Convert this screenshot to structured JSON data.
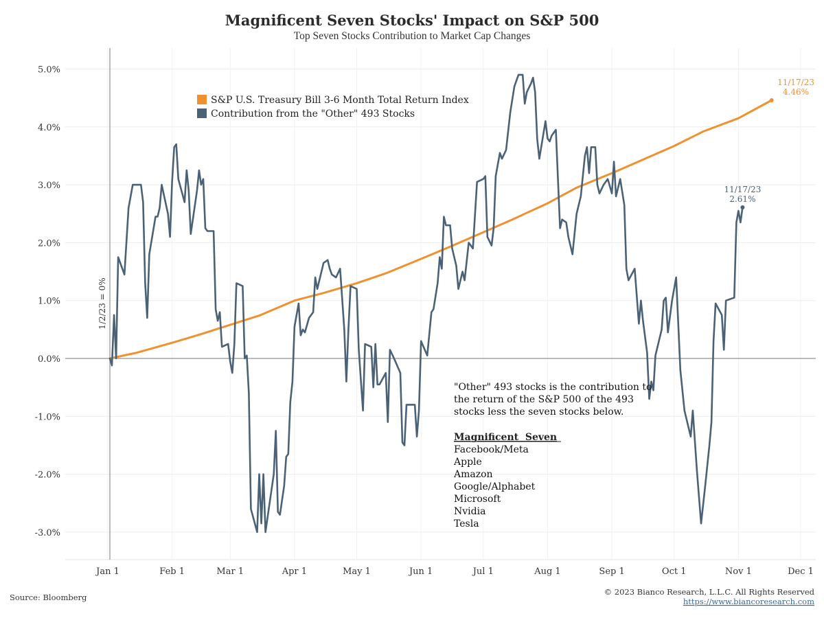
{
  "chart_data": {
    "type": "line",
    "title": "Magnificent Seven Stocks' Impact on S&P 500",
    "subtitle": "Top Seven Stocks Contribution to Market Cap Changes",
    "xlabel": "",
    "ylabel": "",
    "x_range": [
      "2023-01-01",
      "2023-12-01"
    ],
    "x_ticks": [
      {
        "date": "2023-01-01",
        "label": "Jan 1"
      },
      {
        "date": "2023-02-01",
        "label": "Feb 1"
      },
      {
        "date": "2023-03-01",
        "label": "Mar 1"
      },
      {
        "date": "2023-04-01",
        "label": "Apr 1"
      },
      {
        "date": "2023-05-01",
        "label": "May 1"
      },
      {
        "date": "2023-06-01",
        "label": "Jun 1"
      },
      {
        "date": "2023-07-01",
        "label": "Jul 1"
      },
      {
        "date": "2023-08-01",
        "label": "Aug 1"
      },
      {
        "date": "2023-09-01",
        "label": "Sep 1"
      },
      {
        "date": "2023-10-01",
        "label": "Oct 1"
      },
      {
        "date": "2023-11-01",
        "label": "Nov 1"
      },
      {
        "date": "2023-12-01",
        "label": "Dec 1"
      }
    ],
    "ylim": [
      -3.5,
      5.2
    ],
    "y_ticks": [
      {
        "value": 5,
        "label": "5.0%"
      },
      {
        "value": 4,
        "label": "4.0%"
      },
      {
        "value": 3,
        "label": "3.0%"
      },
      {
        "value": 2,
        "label": "2.0%"
      },
      {
        "value": 1,
        "label": "1.0%"
      },
      {
        "value": 0,
        "label": "0.0%"
      },
      {
        "value": -1,
        "label": "-1.0%"
      },
      {
        "value": -2,
        "label": "-2.0%"
      },
      {
        "value": -3,
        "label": "-3.0%"
      }
    ],
    "grid": true,
    "legend_position": "top-left",
    "start_marker": {
      "date": "2023-01-02",
      "label": "1/2/23 = 0%"
    },
    "series": [
      {
        "name": "S&P U.S. Treasury Bill 3-6 Month Total Return Index",
        "color": "#f0902e",
        "end_label_date": "11/17/23",
        "end_label_value": "4.46%",
        "points": [
          [
            "2023-01-02",
            0.0
          ],
          [
            "2023-01-15",
            0.1
          ],
          [
            "2023-02-01",
            0.27
          ],
          [
            "2023-02-15",
            0.42
          ],
          [
            "2023-03-01",
            0.58
          ],
          [
            "2023-03-15",
            0.74
          ],
          [
            "2023-04-01",
            1.0
          ],
          [
            "2023-04-15",
            1.13
          ],
          [
            "2023-05-01",
            1.3
          ],
          [
            "2023-05-15",
            1.47
          ],
          [
            "2023-06-01",
            1.72
          ],
          [
            "2023-06-15",
            1.93
          ],
          [
            "2023-07-01",
            2.18
          ],
          [
            "2023-07-15",
            2.4
          ],
          [
            "2023-08-01",
            2.68
          ],
          [
            "2023-08-15",
            2.95
          ],
          [
            "2023-09-01",
            3.2
          ],
          [
            "2023-09-15",
            3.42
          ],
          [
            "2023-10-01",
            3.67
          ],
          [
            "2023-10-15",
            3.92
          ],
          [
            "2023-11-01",
            4.15
          ],
          [
            "2023-11-17",
            4.46
          ]
        ]
      },
      {
        "name": "Contribution from the \"Other\" 493 Stocks",
        "color": "#4a6176",
        "end_label_date": "11/17/23",
        "end_label_value": "2.61%",
        "points": [
          [
            "2023-01-02",
            0.0
          ],
          [
            "2023-01-03",
            -0.12
          ],
          [
            "2023-01-04",
            0.75
          ],
          [
            "2023-01-05",
            0.0
          ],
          [
            "2023-01-06",
            1.75
          ],
          [
            "2023-01-09",
            1.45
          ],
          [
            "2023-01-11",
            2.6
          ],
          [
            "2023-01-13",
            3.0
          ],
          [
            "2023-01-17",
            3.0
          ],
          [
            "2023-01-18",
            2.7
          ],
          [
            "2023-01-19",
            1.3
          ],
          [
            "2023-01-20",
            0.7
          ],
          [
            "2023-01-21",
            1.8
          ],
          [
            "2023-01-24",
            2.45
          ],
          [
            "2023-01-25",
            2.45
          ],
          [
            "2023-01-26",
            2.6
          ],
          [
            "2023-01-27",
            3.0
          ],
          [
            "2023-01-30",
            2.5
          ],
          [
            "2023-01-31",
            2.1
          ],
          [
            "2023-02-01",
            3.05
          ],
          [
            "2023-02-02",
            3.65
          ],
          [
            "2023-02-03",
            3.7
          ],
          [
            "2023-02-04",
            3.1
          ],
          [
            "2023-02-07",
            2.7
          ],
          [
            "2023-02-08",
            3.25
          ],
          [
            "2023-02-09",
            2.9
          ],
          [
            "2023-02-10",
            2.15
          ],
          [
            "2023-02-13",
            2.9
          ],
          [
            "2023-02-14",
            3.25
          ],
          [
            "2023-02-15",
            3.0
          ],
          [
            "2023-02-16",
            3.1
          ],
          [
            "2023-02-17",
            2.25
          ],
          [
            "2023-02-18",
            2.2
          ],
          [
            "2023-02-21",
            2.2
          ],
          [
            "2023-02-22",
            0.85
          ],
          [
            "2023-02-23",
            0.65
          ],
          [
            "2023-02-24",
            0.8
          ],
          [
            "2023-02-25",
            0.2
          ],
          [
            "2023-02-28",
            0.25
          ],
          [
            "2023-03-01",
            -0.05
          ],
          [
            "2023-03-02",
            -0.25
          ],
          [
            "2023-03-03",
            0.25
          ],
          [
            "2023-03-04",
            1.3
          ],
          [
            "2023-03-07",
            1.25
          ],
          [
            "2023-03-08",
            0.0
          ],
          [
            "2023-03-09",
            0.05
          ],
          [
            "2023-03-10",
            -0.6
          ],
          [
            "2023-03-11",
            -2.6
          ],
          [
            "2023-03-14",
            -3.0
          ],
          [
            "2023-03-15",
            -2.0
          ],
          [
            "2023-03-16",
            -2.85
          ],
          [
            "2023-03-17",
            -2.0
          ],
          [
            "2023-03-18",
            -3.0
          ],
          [
            "2023-03-20",
            -2.5
          ],
          [
            "2023-03-22",
            -2.0
          ],
          [
            "2023-03-23",
            -1.25
          ],
          [
            "2023-03-24",
            -2.65
          ],
          [
            "2023-03-25",
            -2.7
          ],
          [
            "2023-03-27",
            -2.2
          ],
          [
            "2023-03-28",
            -1.7
          ],
          [
            "2023-03-29",
            -1.65
          ],
          [
            "2023-03-30",
            -0.75
          ],
          [
            "2023-03-31",
            -0.4
          ],
          [
            "2023-04-01",
            0.55
          ],
          [
            "2023-04-03",
            0.95
          ],
          [
            "2023-04-04",
            0.4
          ],
          [
            "2023-04-05",
            0.5
          ],
          [
            "2023-04-06",
            0.45
          ],
          [
            "2023-04-08",
            0.7
          ],
          [
            "2023-04-10",
            0.8
          ],
          [
            "2023-04-11",
            1.4
          ],
          [
            "2023-04-12",
            1.2
          ],
          [
            "2023-04-13",
            1.35
          ],
          [
            "2023-04-15",
            1.65
          ],
          [
            "2023-04-17",
            1.7
          ],
          [
            "2023-04-18",
            1.55
          ],
          [
            "2023-04-19",
            1.45
          ],
          [
            "2023-04-21",
            1.4
          ],
          [
            "2023-04-23",
            1.55
          ],
          [
            "2023-04-25",
            0.5
          ],
          [
            "2023-04-26",
            -0.4
          ],
          [
            "2023-04-27",
            0.5
          ],
          [
            "2023-04-28",
            1.25
          ],
          [
            "2023-05-01",
            1.2
          ],
          [
            "2023-05-02",
            0.15
          ],
          [
            "2023-05-04",
            -0.9
          ],
          [
            "2023-05-05",
            0.25
          ],
          [
            "2023-05-08",
            0.2
          ],
          [
            "2023-05-09",
            -0.5
          ],
          [
            "2023-05-10",
            0.25
          ],
          [
            "2023-05-11",
            -0.45
          ],
          [
            "2023-05-12",
            -0.45
          ],
          [
            "2023-05-15",
            -0.25
          ],
          [
            "2023-05-16",
            -1.1
          ],
          [
            "2023-05-17",
            0.15
          ],
          [
            "2023-05-19",
            0.0
          ],
          [
            "2023-05-22",
            -0.25
          ],
          [
            "2023-05-23",
            -1.45
          ],
          [
            "2023-05-24",
            -1.5
          ],
          [
            "2023-05-25",
            -0.8
          ],
          [
            "2023-05-29",
            -0.8
          ],
          [
            "2023-05-30",
            -1.35
          ],
          [
            "2023-05-31",
            -0.9
          ],
          [
            "2023-06-01",
            0.3
          ],
          [
            "2023-06-04",
            0.05
          ],
          [
            "2023-06-06",
            0.8
          ],
          [
            "2023-06-07",
            0.85
          ],
          [
            "2023-06-09",
            1.3
          ],
          [
            "2023-06-10",
            1.75
          ],
          [
            "2023-06-11",
            1.55
          ],
          [
            "2023-06-12",
            2.45
          ],
          [
            "2023-06-13",
            2.3
          ],
          [
            "2023-06-15",
            2.3
          ],
          [
            "2023-06-16",
            1.9
          ],
          [
            "2023-06-18",
            1.6
          ],
          [
            "2023-06-19",
            1.2
          ],
          [
            "2023-06-21",
            1.5
          ],
          [
            "2023-06-22",
            1.35
          ],
          [
            "2023-06-24",
            2.0
          ],
          [
            "2023-06-26",
            1.9
          ],
          [
            "2023-06-28",
            3.05
          ],
          [
            "2023-07-01",
            3.1
          ],
          [
            "2023-07-02",
            3.15
          ],
          [
            "2023-07-03",
            2.1
          ],
          [
            "2023-07-05",
            1.95
          ],
          [
            "2023-07-06",
            2.25
          ],
          [
            "2023-07-07",
            3.15
          ],
          [
            "2023-07-09",
            3.55
          ],
          [
            "2023-07-10",
            3.45
          ],
          [
            "2023-07-12",
            3.6
          ],
          [
            "2023-07-14",
            4.25
          ],
          [
            "2023-07-16",
            4.7
          ],
          [
            "2023-07-18",
            4.9
          ],
          [
            "2023-07-20",
            4.9
          ],
          [
            "2023-07-21",
            4.4
          ],
          [
            "2023-07-22",
            4.6
          ],
          [
            "2023-07-24",
            4.75
          ],
          [
            "2023-07-25",
            4.85
          ],
          [
            "2023-07-26",
            4.6
          ],
          [
            "2023-07-27",
            3.8
          ],
          [
            "2023-07-28",
            3.45
          ],
          [
            "2023-07-31",
            4.1
          ],
          [
            "2023-08-01",
            3.8
          ],
          [
            "2023-08-02",
            3.75
          ],
          [
            "2023-08-03",
            3.85
          ],
          [
            "2023-08-05",
            3.95
          ],
          [
            "2023-08-07",
            2.25
          ],
          [
            "2023-08-08",
            2.4
          ],
          [
            "2023-08-10",
            2.35
          ],
          [
            "2023-08-11",
            2.1
          ],
          [
            "2023-08-13",
            1.8
          ],
          [
            "2023-08-15",
            2.5
          ],
          [
            "2023-08-17",
            2.8
          ],
          [
            "2023-08-19",
            3.5
          ],
          [
            "2023-08-20",
            3.65
          ],
          [
            "2023-08-21",
            3.2
          ],
          [
            "2023-08-22",
            3.65
          ],
          [
            "2023-08-24",
            3.65
          ],
          [
            "2023-08-25",
            3.0
          ],
          [
            "2023-08-26",
            2.85
          ],
          [
            "2023-08-28",
            3.0
          ],
          [
            "2023-08-30",
            3.1
          ],
          [
            "2023-09-01",
            2.85
          ],
          [
            "2023-09-02",
            3.4
          ],
          [
            "2023-09-03",
            2.8
          ],
          [
            "2023-09-05",
            3.1
          ],
          [
            "2023-09-07",
            2.65
          ],
          [
            "2023-09-08",
            1.55
          ],
          [
            "2023-09-09",
            1.35
          ],
          [
            "2023-09-12",
            1.55
          ],
          [
            "2023-09-14",
            0.6
          ],
          [
            "2023-09-15",
            1.0
          ],
          [
            "2023-09-16",
            0.65
          ],
          [
            "2023-09-18",
            0.1
          ],
          [
            "2023-09-19",
            -0.7
          ],
          [
            "2023-09-20",
            -0.4
          ],
          [
            "2023-09-21",
            -0.55
          ],
          [
            "2023-09-22",
            0.05
          ],
          [
            "2023-09-25",
            0.5
          ],
          [
            "2023-09-26",
            1.0
          ],
          [
            "2023-09-27",
            1.05
          ],
          [
            "2023-09-28",
            0.45
          ],
          [
            "2023-09-30",
            1.0
          ],
          [
            "2023-10-02",
            1.4
          ],
          [
            "2023-10-04",
            -0.2
          ],
          [
            "2023-10-06",
            -0.9
          ],
          [
            "2023-10-09",
            -1.35
          ],
          [
            "2023-10-10",
            -0.9
          ],
          [
            "2023-10-12",
            -1.95
          ],
          [
            "2023-10-14",
            -2.85
          ],
          [
            "2023-10-16",
            -2.2
          ],
          [
            "2023-10-18",
            -1.5
          ],
          [
            "2023-10-19",
            -1.1
          ],
          [
            "2023-10-20",
            0.3
          ],
          [
            "2023-10-21",
            0.95
          ],
          [
            "2023-10-24",
            0.75
          ],
          [
            "2023-10-25",
            0.15
          ],
          [
            "2023-10-26",
            1.0
          ],
          [
            "2023-10-30",
            1.05
          ],
          [
            "2023-10-31",
            2.35
          ],
          [
            "2023-11-01",
            2.55
          ],
          [
            "2023-11-02",
            2.35
          ],
          [
            "2023-11-03",
            2.61
          ]
        ]
      }
    ]
  },
  "annotation": {
    "lines": [
      "\"Other\" 493 stocks is the contribution to",
      "the return of the S&P 500 of the 493",
      "stocks less the seven stocks below."
    ],
    "heading": "Magnificent  Seven",
    "stocks": [
      "Facebook/Meta",
      "Apple",
      "Amazon",
      "Google/Alphabet",
      "Microsoft",
      "Nvidia",
      "Tesla"
    ]
  },
  "footer": {
    "source": "Source: Bloomberg",
    "copyright": "© 2023 Bianco Research, L.L.C. All Rights Reserved",
    "url": "https://www.biancoresearch.com"
  }
}
